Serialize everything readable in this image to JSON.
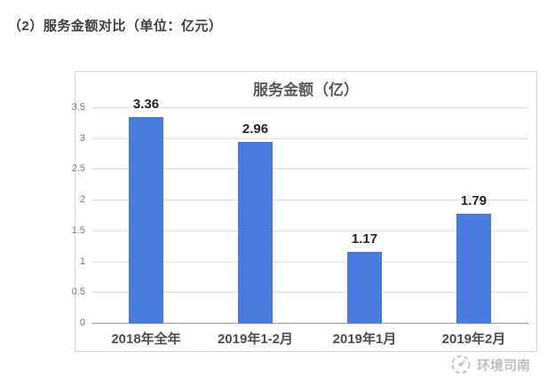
{
  "page": {
    "heading": "（2）服务金额对比（单位：亿元）"
  },
  "chart_data": {
    "type": "bar",
    "title": "服务金额（亿）",
    "categories": [
      "2018年全年",
      "2019年1-2月",
      "2019年1月",
      "2019年2月"
    ],
    "values": [
      3.36,
      2.96,
      1.17,
      1.79
    ],
    "data_labels": [
      "3.36",
      "2.96",
      "1.17",
      "1.79"
    ],
    "xlabel": "",
    "ylabel": "",
    "ylim": [
      0,
      3.5
    ],
    "yticks": [
      "0",
      "0.5",
      "1",
      "1.5",
      "2",
      "2.5",
      "3",
      "3.5"
    ],
    "grid": true,
    "legend": "none",
    "colors": {
      "bar": "#4a7ce0",
      "title": "#595959",
      "data_label": "#262626",
      "category_label": "#4d4d4d",
      "ytick_label": "#7a7a7a",
      "gridline": "#e1e1e1",
      "axis_line": "#9e9e9e",
      "card_border": "#d9d9d9"
    }
  },
  "watermark": {
    "text": "环境司南"
  }
}
